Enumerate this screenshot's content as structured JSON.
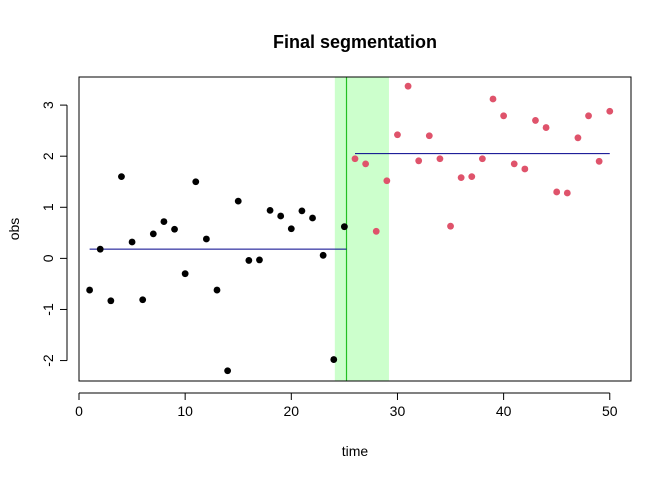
{
  "chart_data": {
    "type": "scatter",
    "title": "Final segmentation",
    "xlabel": "time",
    "ylabel": "obs",
    "xlim": [
      0,
      52
    ],
    "ylim": [
      -2.4,
      3.55
    ],
    "x_ticks": [
      0,
      10,
      20,
      30,
      40,
      50
    ],
    "y_ticks": [
      -2,
      -1,
      0,
      1,
      2,
      3
    ],
    "grid": false,
    "legend": "none",
    "series": [
      {
        "color": "#000000",
        "points": [
          [
            1,
            -0.62
          ],
          [
            2,
            0.18
          ],
          [
            3,
            -0.83
          ],
          [
            4,
            1.6
          ],
          [
            5,
            0.32
          ],
          [
            6,
            -0.81
          ],
          [
            7,
            0.48
          ],
          [
            8,
            0.72
          ],
          [
            9,
            0.57
          ],
          [
            10,
            -0.3
          ],
          [
            11,
            1.5
          ],
          [
            12,
            0.38
          ],
          [
            13,
            -0.62
          ],
          [
            14,
            -2.2
          ],
          [
            15,
            1.12
          ],
          [
            16,
            -0.04
          ],
          [
            17,
            -0.03
          ],
          [
            18,
            0.94
          ],
          [
            19,
            0.83
          ],
          [
            20,
            0.58
          ],
          [
            21,
            0.93
          ],
          [
            22,
            0.79
          ],
          [
            23,
            0.06
          ],
          [
            24,
            -1.98
          ],
          [
            25,
            0.62
          ]
        ]
      },
      {
        "color": "#DF536B",
        "points": [
          [
            26,
            1.95
          ],
          [
            27,
            1.85
          ],
          [
            28,
            0.53
          ],
          [
            29,
            1.52
          ],
          [
            30,
            2.42
          ],
          [
            31,
            3.37
          ],
          [
            32,
            1.91
          ],
          [
            33,
            2.4
          ],
          [
            34,
            1.95
          ],
          [
            35,
            0.63
          ],
          [
            36,
            1.58
          ],
          [
            37,
            1.6
          ],
          [
            38,
            1.95
          ],
          [
            39,
            3.12
          ],
          [
            40,
            2.79
          ],
          [
            41,
            1.85
          ],
          [
            42,
            1.75
          ],
          [
            43,
            2.7
          ],
          [
            44,
            2.56
          ],
          [
            45,
            1.3
          ],
          [
            46,
            1.28
          ],
          [
            47,
            2.36
          ],
          [
            48,
            2.79
          ],
          [
            49,
            1.9
          ],
          [
            50,
            2.88
          ]
        ]
      }
    ],
    "segment_means": [
      {
        "x_start": 1,
        "x_end": 25.2,
        "y": 0.18,
        "color": "#00008B"
      },
      {
        "x_start": 26,
        "x_end": 50,
        "y": 2.05,
        "color": "#00008B"
      }
    ],
    "changepoint": {
      "x": 25.2,
      "interval": [
        24.1,
        29.2
      ],
      "line_color": "#22C022",
      "band_color": "#CCFFCC"
    }
  }
}
